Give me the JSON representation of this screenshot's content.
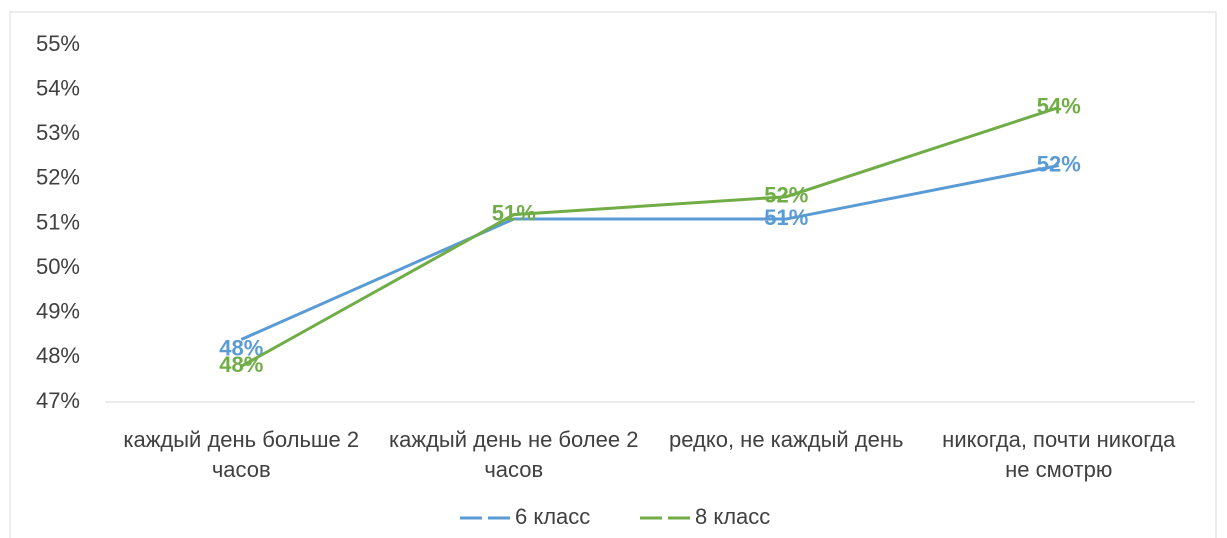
{
  "chart_data": {
    "type": "line",
    "categories": [
      "каждый день больше 2 часов",
      "каждый день не более 2 часов",
      "редко, не каждый день",
      "никогда, почти никогда не смотрю"
    ],
    "series": [
      {
        "name": "6 класс",
        "color": "#5b9bd5",
        "values": [
          48.4,
          51.1,
          51.1,
          52.3
        ],
        "value_labels": [
          "48%",
          null,
          "51%",
          "52%"
        ]
      },
      {
        "name": "8 класс",
        "color": "#70ad47",
        "values": [
          47.8,
          51.2,
          51.6,
          53.6
        ],
        "value_labels": [
          "48%",
          "51%",
          "52%",
          "54%"
        ]
      }
    ],
    "ylim": [
      47,
      55
    ],
    "yticks": [
      {
        "value": 47,
        "label": "47%"
      },
      {
        "value": 48,
        "label": "48%"
      },
      {
        "value": 49,
        "label": "49%"
      },
      {
        "value": 50,
        "label": "50%"
      },
      {
        "value": 51,
        "label": "51%"
      },
      {
        "value": 52,
        "label": "52%"
      },
      {
        "value": 53,
        "label": "53%"
      },
      {
        "value": 54,
        "label": "54%"
      },
      {
        "value": 55,
        "label": "55%"
      }
    ],
    "legend": "bottom"
  }
}
